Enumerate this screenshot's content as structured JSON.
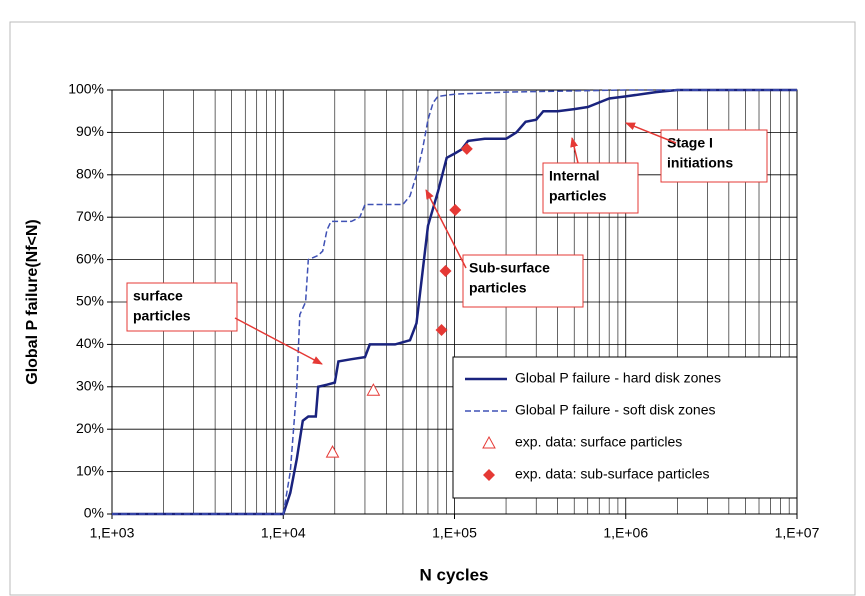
{
  "chart_data": {
    "type": "line",
    "xlabel": "N cycles",
    "ylabel": "Global P failure(Nf<N)",
    "xlog": true,
    "grid": true,
    "minor_grid": true,
    "xlim": [
      1000,
      10000000
    ],
    "ylim": [
      0,
      100
    ],
    "xticks": [
      {
        "value": 1000,
        "label": "1,E+03"
      },
      {
        "value": 10000,
        "label": "1,E+04"
      },
      {
        "value": 100000,
        "label": "1,E+05"
      },
      {
        "value": 1000000,
        "label": "1,E+06"
      },
      {
        "value": 10000000,
        "label": "1,E+07"
      }
    ],
    "yticks": [
      {
        "value": 0,
        "label": "0%"
      },
      {
        "value": 10,
        "label": "10%"
      },
      {
        "value": 20,
        "label": "20%"
      },
      {
        "value": 30,
        "label": "30%"
      },
      {
        "value": 40,
        "label": "40%"
      },
      {
        "value": 50,
        "label": "50%"
      },
      {
        "value": 60,
        "label": "60%"
      },
      {
        "value": 70,
        "label": "70%"
      },
      {
        "value": 80,
        "label": "80%"
      },
      {
        "value": 90,
        "label": "90%"
      },
      {
        "value": 100,
        "label": "100%"
      }
    ],
    "series": [
      {
        "name": "Global P failure - hard disk zones",
        "color": "#1a237e",
        "style": "solid",
        "x": [
          1000,
          10000,
          11000,
          12000,
          13000,
          14000,
          15500,
          16000,
          18000,
          20000,
          21000,
          25000,
          30000,
          32000,
          45000,
          55000,
          60000,
          65000,
          70000,
          80000,
          90000,
          100000,
          110000,
          120000,
          150000,
          200000,
          230000,
          260000,
          300000,
          330000,
          400000,
          500000,
          600000,
          800000,
          1000000,
          1500000,
          2000000,
          10000000
        ],
        "values": [
          0,
          0,
          5,
          13,
          22,
          23,
          23,
          30,
          30.5,
          31,
          36,
          36.5,
          37,
          40,
          40,
          41,
          45,
          57,
          68,
          76,
          84,
          85,
          86,
          88,
          88.5,
          88.5,
          90,
          92.5,
          93,
          95,
          95,
          95.5,
          96,
          98,
          98.5,
          99.5,
          100,
          100
        ]
      },
      {
        "name": "Global P failure - soft disk zones",
        "color": "#3f51b5",
        "style": "dashed",
        "x": [
          1000,
          10000,
          11000,
          12000,
          12500,
          13500,
          14000,
          16000,
          17000,
          18000,
          19000,
          25000,
          28000,
          30000,
          40000,
          50000,
          55000,
          60000,
          65000,
          70000,
          75000,
          80000,
          100000,
          200000,
          1000000,
          10000000
        ],
        "values": [
          0,
          0,
          10,
          30,
          47,
          50,
          60,
          61,
          62,
          67,
          69,
          69,
          70,
          73,
          73,
          73,
          75,
          80,
          86,
          93,
          97,
          98.5,
          99,
          99.5,
          100,
          100
        ]
      },
      {
        "name": "exp. data: surface particles",
        "color": "#e53935",
        "marker": "triangle",
        "x": [
          19400,
          33600
        ],
        "values": [
          14.6,
          29.2
        ]
      },
      {
        "name": "exp. data: sub-surface particles",
        "color": "#e53935",
        "marker": "diamond",
        "x": [
          84000,
          88600,
          101000,
          118000
        ],
        "values": [
          43.4,
          57.3,
          71.7,
          86.1
        ]
      }
    ],
    "annotations": [
      {
        "lines": [
          "surface",
          "particles"
        ]
      },
      {
        "lines": [
          "Sub-surface",
          "particles"
        ]
      },
      {
        "lines": [
          "Internal",
          "particles"
        ]
      },
      {
        "lines": [
          "Stage I",
          "initiations"
        ]
      }
    ]
  }
}
